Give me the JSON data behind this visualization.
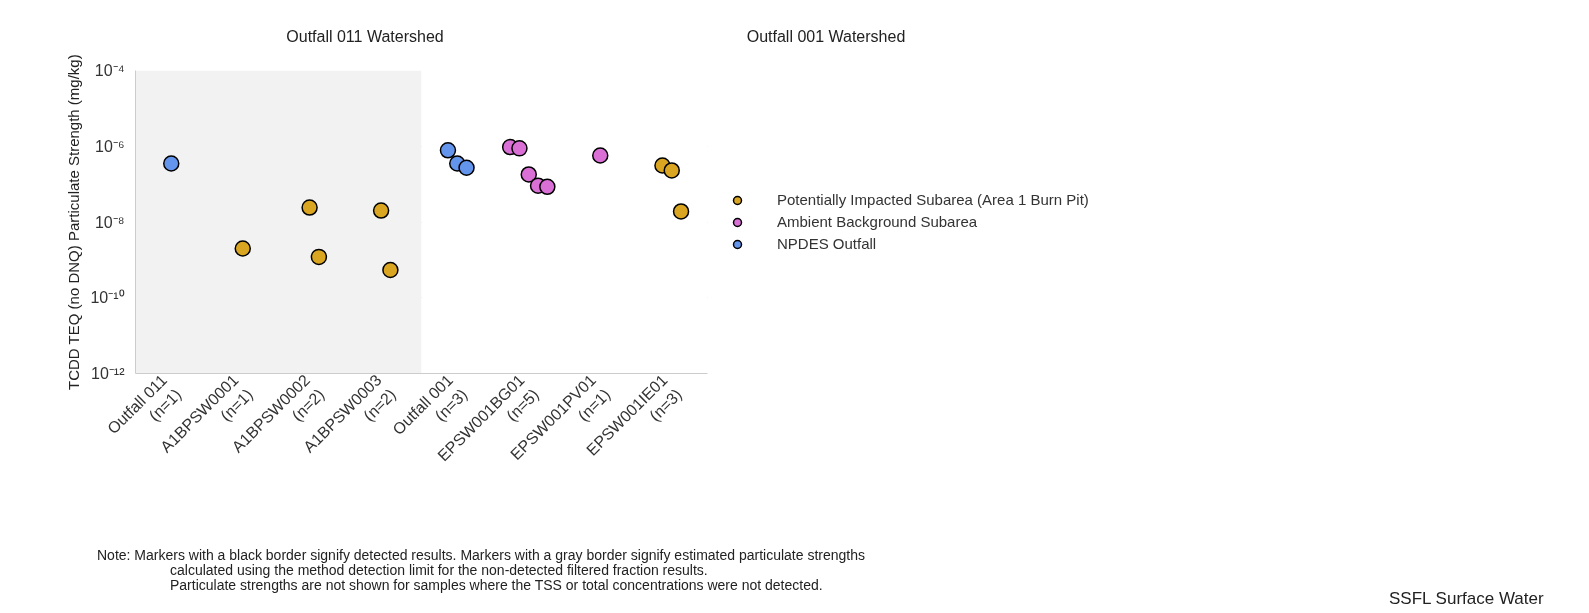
{
  "chart_data": {
    "type": "scatter",
    "ylabel": "TCDD TEQ (no DNQ) Particulate Strength (mg/kg)",
    "categories": [
      "Outfall 011\n(n=1)",
      "A1BPSW0001\n(n=1)",
      "A1BPSW0002\n(n=2)",
      "A1BPSW0003\n(n=2)",
      "Outfall 001\n(n=3)",
      "EPSW001BG01\n(n=5)",
      "EPSW001PV01\n(n=1)",
      "EPSW001IE01\n(n=3)"
    ],
    "series": [
      {
        "name": "Potentially Impacted Subarea (Area 1 Burn Pit)",
        "color": "#daa520",
        "x": [
          "A1BPSW0001\n(n=1)",
          "A1BPSW0002\n(n=2)",
          "A1BPSW0002\n(n=2)",
          "A1BPSW0003\n(n=2)",
          "A1BPSW0003\n(n=2)",
          "EPSW001IE01\n(n=3)",
          "EPSW001IE01\n(n=3)",
          "EPSW001IE01\n(n=3)"
        ],
        "values": [
          2e-09,
          2.4e-08,
          1.2e-09,
          2e-08,
          5.4e-10,
          3.1e-07,
          2.3e-07,
          1.9e-08
        ]
      },
      {
        "name": "Ambient Background Subarea",
        "color": "#da70d6",
        "x": [
          "EPSW001BG01\n(n=5)",
          "EPSW001BG01\n(n=5)",
          "EPSW001BG01\n(n=5)",
          "EPSW001BG01\n(n=5)",
          "EPSW001BG01\n(n=5)",
          "EPSW001PV01\n(n=1)"
        ],
        "values": [
          9.5e-07,
          8.8e-07,
          1.8e-07,
          9.1e-08,
          8.5e-08,
          5.7e-07
        ]
      },
      {
        "name": "NPDES Outfall",
        "color": "#6495ed",
        "x": [
          "Outfall 011\n(n=1)",
          "Outfall 001\n(n=3)",
          "Outfall 001\n(n=3)",
          "Outfall 001\n(n=3)"
        ],
        "values": [
          3.5e-07,
          7.8e-07,
          3.5e-07,
          2.7e-07
        ]
      }
    ],
    "log": true,
    "ylim": [
      1e-12,
      0.0001
    ],
    "yticks": [
      {
        "value": 1e-12,
        "label": "10⁻¹²"
      },
      {
        "value": 1e-10,
        "label": "10⁻¹⁰"
      },
      {
        "value": 1e-08,
        "label": "10⁻⁸"
      },
      {
        "value": 1e-06,
        "label": "10⁻⁶"
      },
      {
        "value": 0.0001,
        "label": "10⁻⁴"
      }
    ],
    "grid": "y",
    "marker": "circle",
    "legend": "right",
    "bands": [
      {
        "axis": "x",
        "from": "Outfall 011\n(n=1)",
        "to": "A1BPSW0003\n(n=2)",
        "label": "Outfall 011 Watershed",
        "color": "#f2f2f2"
      },
      {
        "axis": "x",
        "from": "Outfall 001\n(n=3)",
        "to": "EPSW001IE01\n(n=3)",
        "label": "Outfall 001 Watershed",
        "color": "#ffffff"
      }
    ],
    "annotations": [
      "Note: Markers with a black border signify detected results. Markers with a gray border signify estimated particulate strengths\ncalculated using the method detection limit for the non-detected filtered fraction results.\nParticulate strengths are not shown for samples where the TSS or total concentrations were not detected.",
      "SSFL Surface Water"
    ]
  }
}
